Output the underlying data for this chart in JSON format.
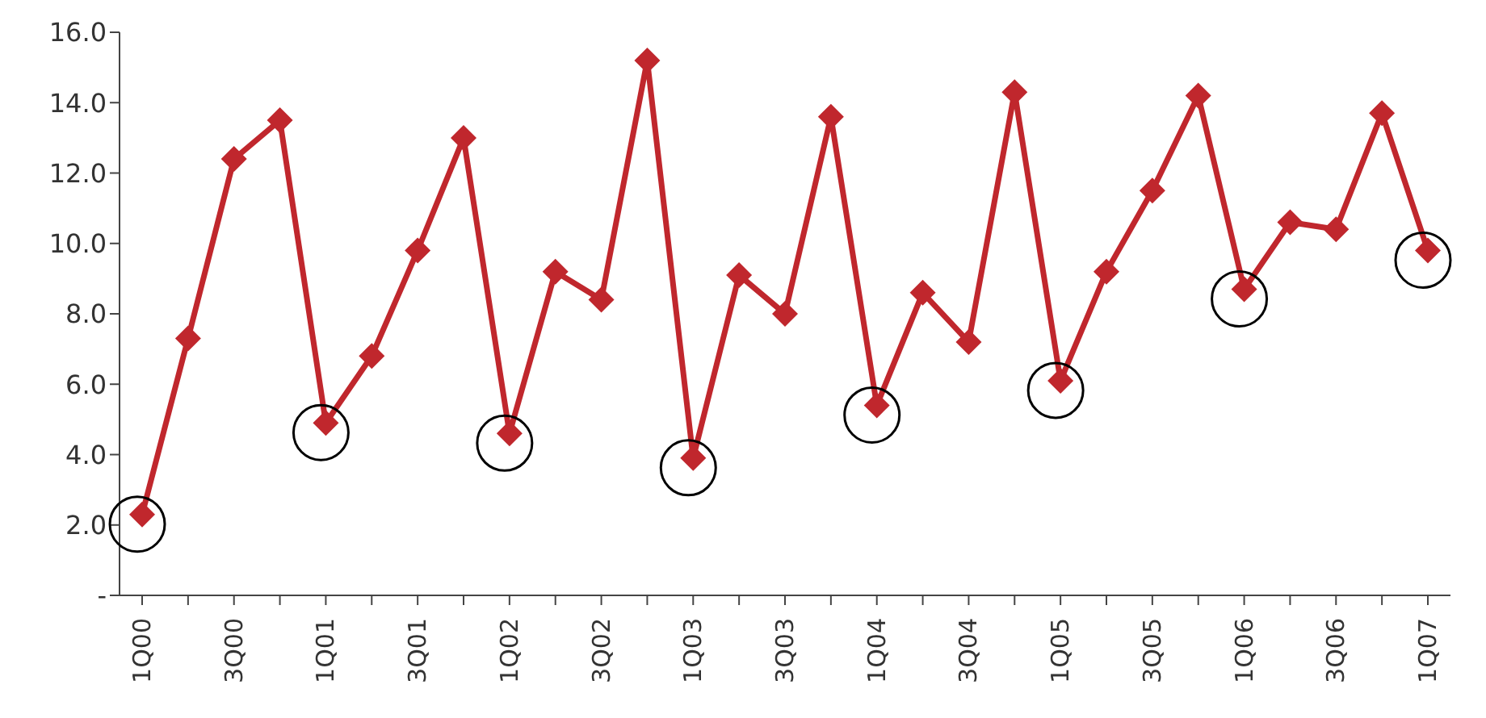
{
  "chart_data": {
    "type": "line",
    "categories": [
      "1Q00",
      null,
      "3Q00",
      null,
      "1Q01",
      null,
      "3Q01",
      null,
      "1Q02",
      null,
      "3Q02",
      null,
      "1Q03",
      null,
      "3Q03",
      null,
      "1Q04",
      null,
      "3Q04",
      null,
      "1Q05",
      null,
      "3Q05",
      null,
      "1Q06",
      null,
      "3Q06",
      null,
      "1Q07"
    ],
    "series": [
      {
        "color": "#c0272d",
        "values": [
          2.3,
          7.3,
          12.4,
          13.5,
          4.9,
          6.8,
          9.8,
          13.0,
          4.6,
          9.2,
          8.4,
          15.2,
          3.9,
          9.1,
          8.0,
          13.6,
          5.4,
          8.6,
          7.2,
          14.3,
          6.1,
          9.2,
          11.5,
          14.2,
          8.7,
          10.6,
          10.4,
          13.7,
          9.8
        ]
      }
    ],
    "ylim": [
      0,
      16
    ],
    "yticks": [
      {
        "value": 0,
        "label": "-"
      },
      {
        "value": 2,
        "label": "2.0"
      },
      {
        "value": 4,
        "label": "4.0"
      },
      {
        "value": 6,
        "label": "6.0"
      },
      {
        "value": 8,
        "label": "8.0"
      },
      {
        "value": 10,
        "label": "10.0"
      },
      {
        "value": 12,
        "label": "12.0"
      },
      {
        "value": 14,
        "label": "14.0"
      },
      {
        "value": 16,
        "label": "16.0"
      }
    ],
    "grid": false,
    "legend": false,
    "marker": "diamond",
    "line_style": "solid"
  }
}
